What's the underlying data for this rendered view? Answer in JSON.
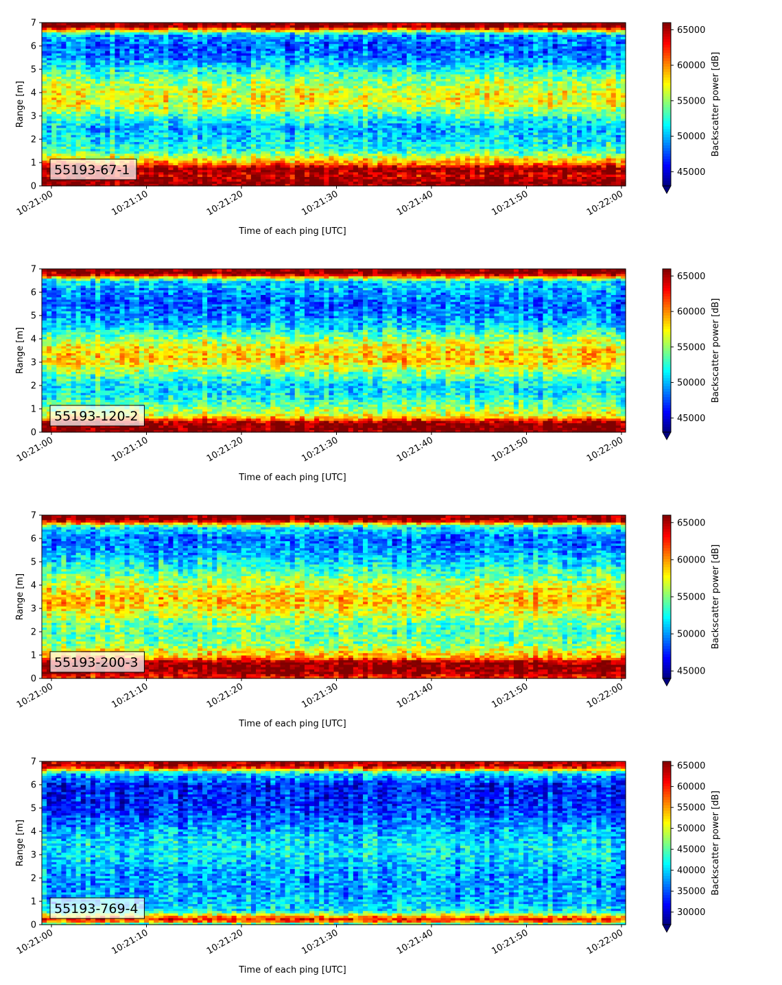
{
  "chart_data": [
    {
      "type": "heatmap",
      "tag": "55193-67-1",
      "xlabel": "Time of each ping [UTC]",
      "ylabel": "Range [m]",
      "x_ticks": [
        "10:21:00",
        "10:21:10",
        "10:21:20",
        "10:21:30",
        "10:21:40",
        "10:21:50",
        "10:22:00"
      ],
      "y_ticks": [
        "0",
        "1",
        "2",
        "3",
        "4",
        "5",
        "6",
        "7"
      ],
      "ylim": [
        0,
        7
      ],
      "colorbar_label": "Backscatter power [dB]",
      "colorbar_ticks": [
        "45000",
        "50000",
        "55000",
        "60000",
        "65000"
      ],
      "clim": [
        43000,
        66000
      ],
      "colormap": "jet",
      "profile": [
        {
          "range_m": 0.0,
          "value": 66000
        },
        {
          "range_m": 0.2,
          "value": 66000
        },
        {
          "range_m": 0.5,
          "value": 64000
        },
        {
          "range_m": 0.75,
          "value": 66000
        },
        {
          "range_m": 1.0,
          "value": 60000
        },
        {
          "range_m": 1.5,
          "value": 53000
        },
        {
          "range_m": 2.0,
          "value": 51000
        },
        {
          "range_m": 2.5,
          "value": 50000
        },
        {
          "range_m": 3.0,
          "value": 53000
        },
        {
          "range_m": 3.5,
          "value": 57000
        },
        {
          "range_m": 4.0,
          "value": 57000
        },
        {
          "range_m": 4.5,
          "value": 55000
        },
        {
          "range_m": 5.0,
          "value": 52000
        },
        {
          "range_m": 5.5,
          "value": 49000
        },
        {
          "range_m": 6.0,
          "value": 48000
        },
        {
          "range_m": 6.5,
          "value": 50000
        },
        {
          "range_m": 6.85,
          "value": 66000
        }
      ]
    },
    {
      "type": "heatmap",
      "tag": "55193-120-2",
      "xlabel": "Time of each ping [UTC]",
      "ylabel": "Range [m]",
      "x_ticks": [
        "10:21:00",
        "10:21:10",
        "10:21:20",
        "10:21:30",
        "10:21:40",
        "10:21:50",
        "10:22:00"
      ],
      "y_ticks": [
        "0",
        "1",
        "2",
        "3",
        "4",
        "5",
        "6",
        "7"
      ],
      "ylim": [
        0,
        7
      ],
      "colorbar_label": "Backscatter power [dB]",
      "colorbar_ticks": [
        "45000",
        "50000",
        "55000",
        "60000",
        "65000"
      ],
      "clim": [
        43000,
        66000
      ],
      "colormap": "jet",
      "profile": [
        {
          "range_m": 0.0,
          "value": 66000
        },
        {
          "range_m": 0.4,
          "value": 66000
        },
        {
          "range_m": 0.7,
          "value": 57000
        },
        {
          "range_m": 1.0,
          "value": 55000
        },
        {
          "range_m": 1.5,
          "value": 52000
        },
        {
          "range_m": 2.0,
          "value": 51000
        },
        {
          "range_m": 2.5,
          "value": 54000
        },
        {
          "range_m": 3.0,
          "value": 58000
        },
        {
          "range_m": 3.5,
          "value": 58000
        },
        {
          "range_m": 4.0,
          "value": 55000
        },
        {
          "range_m": 4.5,
          "value": 51000
        },
        {
          "range_m": 5.0,
          "value": 49000
        },
        {
          "range_m": 5.5,
          "value": 48000
        },
        {
          "range_m": 6.0,
          "value": 49000
        },
        {
          "range_m": 6.5,
          "value": 51000
        },
        {
          "range_m": 6.8,
          "value": 66000
        }
      ]
    },
    {
      "type": "heatmap",
      "tag": "55193-200-3",
      "xlabel": "Time of each ping [UTC]",
      "ylabel": "Range [m]",
      "x_ticks": [
        "10:21:00",
        "10:21:10",
        "10:21:20",
        "10:21:30",
        "10:21:40",
        "10:21:50",
        "10:22:00"
      ],
      "y_ticks": [
        "0",
        "1",
        "2",
        "3",
        "4",
        "5",
        "6",
        "7"
      ],
      "ylim": [
        0,
        7
      ],
      "colorbar_label": "Backscatter power [dB]",
      "colorbar_ticks": [
        "45000",
        "50000",
        "55000",
        "60000",
        "65000"
      ],
      "clim": [
        44000,
        66000
      ],
      "colormap": "jet",
      "profile": [
        {
          "range_m": 0.0,
          "value": 62000
        },
        {
          "range_m": 0.3,
          "value": 66000
        },
        {
          "range_m": 0.7,
          "value": 66000
        },
        {
          "range_m": 0.9,
          "value": 60000
        },
        {
          "range_m": 1.5,
          "value": 55000
        },
        {
          "range_m": 2.0,
          "value": 54000
        },
        {
          "range_m": 2.5,
          "value": 55000
        },
        {
          "range_m": 3.0,
          "value": 58000
        },
        {
          "range_m": 3.5,
          "value": 59000
        },
        {
          "range_m": 4.0,
          "value": 57000
        },
        {
          "range_m": 4.5,
          "value": 54000
        },
        {
          "range_m": 5.0,
          "value": 52000
        },
        {
          "range_m": 5.5,
          "value": 50000
        },
        {
          "range_m": 6.0,
          "value": 49000
        },
        {
          "range_m": 6.5,
          "value": 52000
        },
        {
          "range_m": 6.8,
          "value": 66000
        }
      ]
    },
    {
      "type": "heatmap",
      "tag": "55193-769-4",
      "xlabel": "Time of each ping [UTC]",
      "ylabel": "Range [m]",
      "x_ticks": [
        "10:21:00",
        "10:21:10",
        "10:21:20",
        "10:21:30",
        "10:21:40",
        "10:21:50",
        "10:22:00"
      ],
      "y_ticks": [
        "0",
        "1",
        "2",
        "3",
        "4",
        "5",
        "6",
        "7"
      ],
      "ylim": [
        0,
        7
      ],
      "colorbar_label": "Backscatter power [dB]",
      "colorbar_ticks": [
        "30000",
        "35000",
        "40000",
        "45000",
        "50000",
        "55000",
        "60000",
        "65000"
      ],
      "clim": [
        27000,
        66000
      ],
      "colormap": "jet",
      "profile": [
        {
          "range_m": 0.0,
          "value": 40000
        },
        {
          "range_m": 0.2,
          "value": 62000
        },
        {
          "range_m": 0.35,
          "value": 55000
        },
        {
          "range_m": 0.6,
          "value": 41000
        },
        {
          "range_m": 1.0,
          "value": 39000
        },
        {
          "range_m": 1.5,
          "value": 38000
        },
        {
          "range_m": 2.0,
          "value": 38000
        },
        {
          "range_m": 2.5,
          "value": 39000
        },
        {
          "range_m": 3.0,
          "value": 41000
        },
        {
          "range_m": 3.5,
          "value": 41000
        },
        {
          "range_m": 4.0,
          "value": 39000
        },
        {
          "range_m": 4.5,
          "value": 36000
        },
        {
          "range_m": 5.0,
          "value": 34000
        },
        {
          "range_m": 5.5,
          "value": 33000
        },
        {
          "range_m": 6.0,
          "value": 33000
        },
        {
          "range_m": 6.5,
          "value": 40000
        },
        {
          "range_m": 6.8,
          "value": 64000
        }
      ]
    }
  ]
}
